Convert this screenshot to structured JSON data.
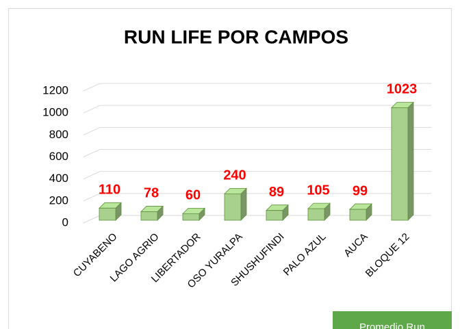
{
  "chart_data": {
    "type": "bar3d",
    "title": "RUN LIFE POR CAMPOS",
    "categories": [
      "CUYABENO",
      "LAGO AGRIO",
      "LIBERTADOR",
      "OSO YURALPA",
      "SHUSHUFINDI",
      "PALO AZUL",
      "AUCA",
      "BLOQUE 12"
    ],
    "values": [
      110,
      78,
      60,
      240,
      89,
      105,
      99,
      1023
    ],
    "color": "#a9d18e",
    "label_color": "#ff0000",
    "ylim": [
      0,
      1200
    ],
    "yticks": [
      0,
      200,
      400,
      600,
      800,
      1000,
      1200
    ],
    "grid": true
  },
  "overlay_button": "Promedio Run"
}
